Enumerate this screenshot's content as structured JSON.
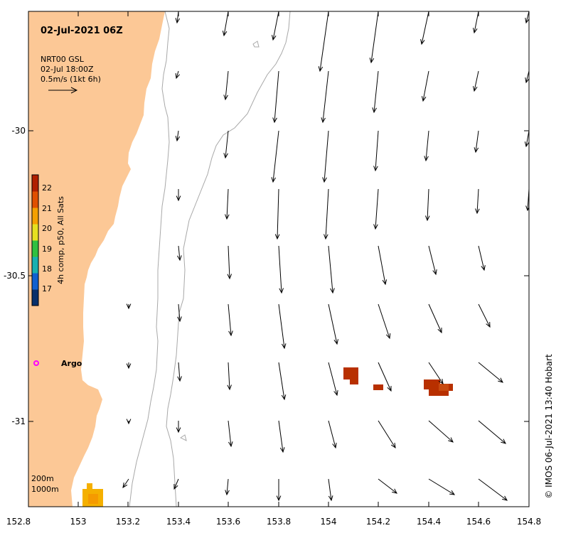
{
  "title": "02-Jul-2021 06Z",
  "legend": {
    "line1": "NRT00 GSL",
    "line2": "02-Jul 18:00Z",
    "line3": "0.5m/s (1kt 6h)"
  },
  "colorbar": {
    "label": "4h comp, p50, All Sats",
    "ticks": [
      "17",
      "18",
      "19",
      "20",
      "21",
      "22"
    ],
    "colors": [
      "#08306b",
      "#1060d0",
      "#18b0b0",
      "#30c040",
      "#e6e020",
      "#f5a000",
      "#e05000",
      "#b02000"
    ]
  },
  "argo": {
    "label": "Argo",
    "color": "#ff00ff"
  },
  "bathy": {
    "label1": "200m",
    "label2": "1000m"
  },
  "credit": "© IMOS 06-Jul-2021 13:40 Hobart",
  "axes": {
    "x_ticks": [
      "152.8",
      "153",
      "153.2",
      "153.4",
      "153.6",
      "153.8",
      "154",
      "154.2",
      "154.4",
      "154.6",
      "154.8"
    ],
    "y_ticks": [
      "-30",
      "-30.5",
      "-31"
    ]
  },
  "colors": {
    "land": "#fcc896",
    "isobath": "#a8a8a8",
    "sst_hot": "#b83000",
    "sst_warm": "#f5b000"
  }
}
